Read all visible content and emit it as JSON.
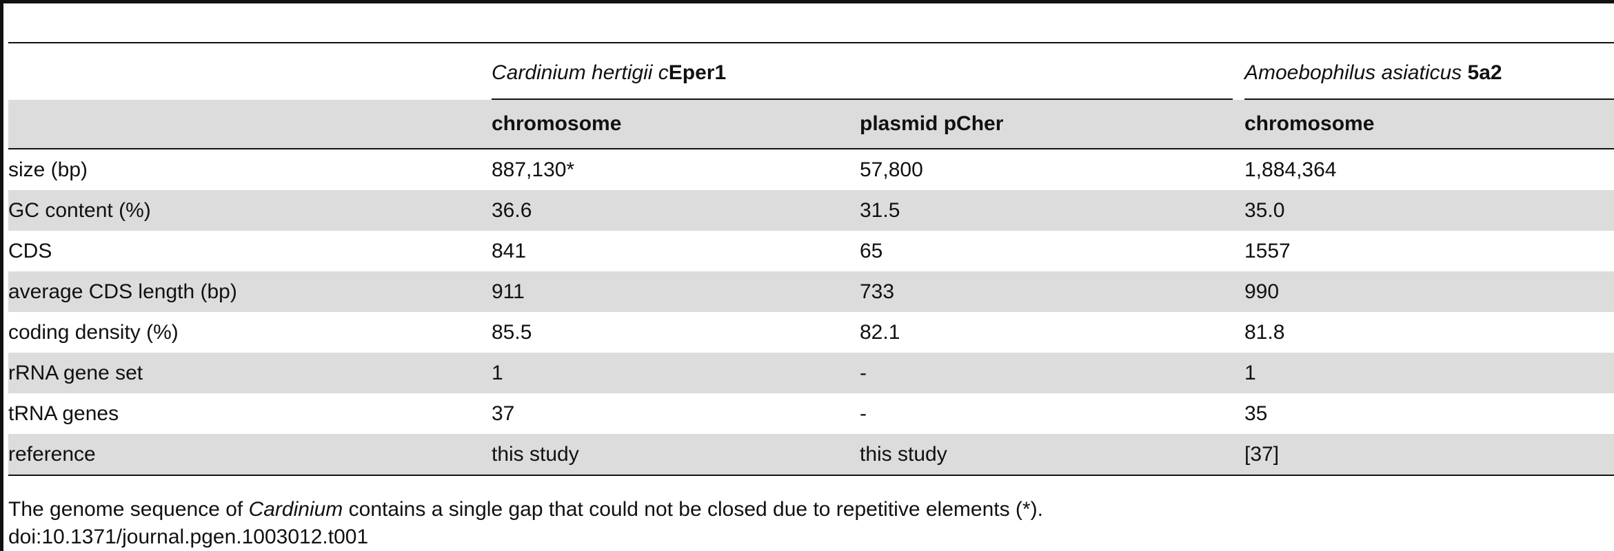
{
  "table": {
    "groups": [
      {
        "italic": "Cardinium hertigii c",
        "bold": "Eper1"
      },
      {
        "italic": "Amoebophilus asiaticus",
        "bold": " 5a2"
      }
    ],
    "subheaders": [
      "chromosome",
      "plasmid pCher",
      "chromosome"
    ],
    "rows": [
      [
        "size (bp)",
        "887,130*",
        "57,800",
        "1,884,364"
      ],
      [
        "GC content (%)",
        "36.6",
        "31.5",
        "35.0"
      ],
      [
        "CDS",
        "841",
        "65",
        "1557"
      ],
      [
        "average CDS length (bp)",
        "911",
        "733",
        "990"
      ],
      [
        "coding density (%)",
        "85.5",
        "82.1",
        "81.8"
      ],
      [
        "rRNA gene set",
        "1",
        "-",
        "1"
      ],
      [
        "tRNA genes",
        "37",
        "-",
        "35"
      ],
      [
        "reference",
        "this study",
        "this study",
        "[37]"
      ]
    ]
  },
  "footnote": {
    "before": "The genome sequence of ",
    "italic": "Cardinium",
    "after": " contains a single gap that could not be closed due to repetitive elements (*).",
    "doi": "doi:10.1371/journal.pgen.1003012.t001"
  }
}
